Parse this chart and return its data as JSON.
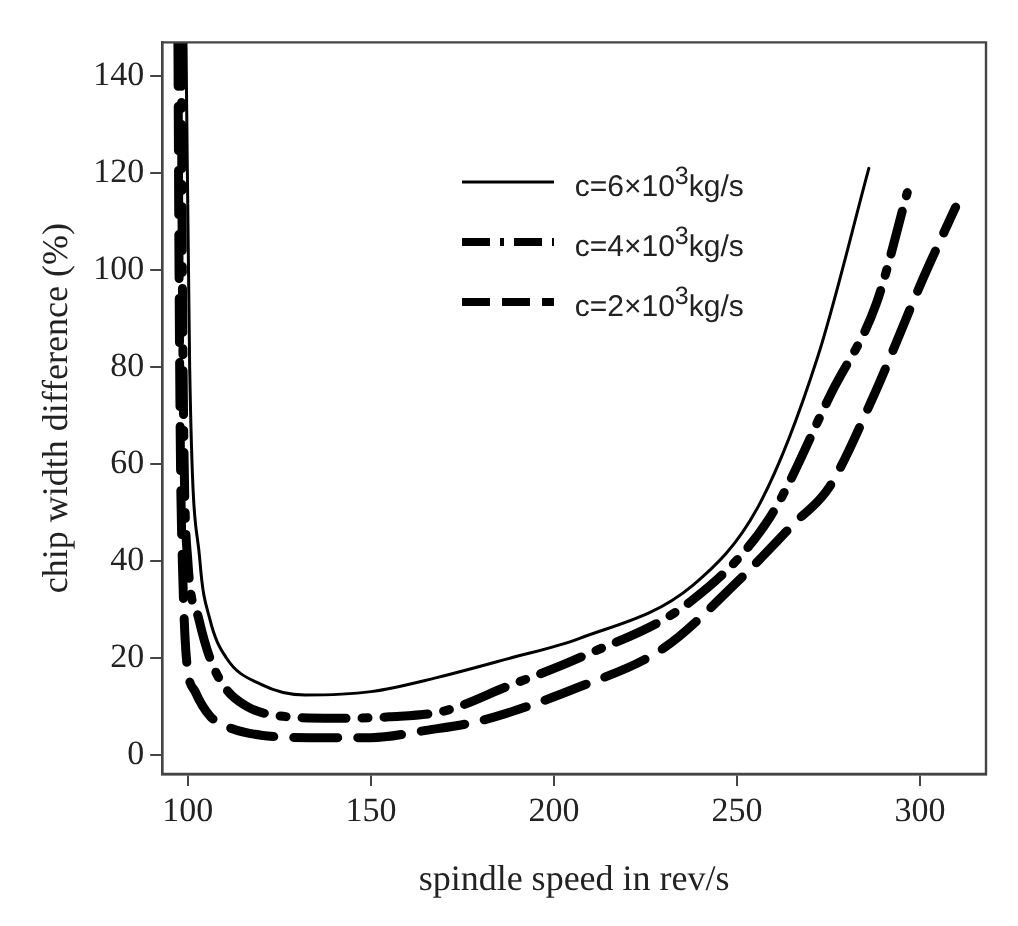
{
  "chart_data": {
    "type": "line",
    "xlabel": "spindle speed in rev/s",
    "ylabel": "chip width difference (%)",
    "xlim": [
      93,
      318
    ],
    "ylim": [
      -4,
      147
    ],
    "xticks": [
      100,
      150,
      200,
      250,
      300
    ],
    "yticks": [
      0,
      20,
      40,
      60,
      80,
      100,
      120,
      140
    ],
    "grid": false,
    "legend": "top right",
    "marker": "none",
    "series": [
      {
        "name": "c=6×10$^{3}$kg/s",
        "color": "#000000",
        "line_style": "solid",
        "x": [
          99.5,
          100.5,
          103.3,
          106,
          110.5,
          120,
          132,
          150,
          168,
          187,
          207,
          238,
          256,
          272,
          286
        ],
        "values": [
          147,
          80,
          40,
          28,
          20,
          14.5,
          12.3,
          13,
          15.9,
          19.7,
          24,
          35,
          51.5,
          82,
          121
        ]
      },
      {
        "name": "c=4×10$^{3}$kg/s",
        "color": "#000000",
        "line_style": "dashdot",
        "x": [
          98.2,
          98.5,
          99,
          100,
          103,
          106,
          110,
          116,
          125,
          140,
          155,
          170,
          187,
          207,
          238,
          259,
          276,
          288,
          296.5
        ],
        "values": [
          147,
          100,
          60,
          40,
          28,
          20,
          14,
          10,
          8,
          7.5,
          7.8,
          9,
          14,
          20,
          32,
          49,
          75,
          93,
          116
        ]
      },
      {
        "name": "c=2×10$^{3}$kg/s",
        "color": "#000000",
        "line_style": "dashed",
        "x": [
          97.3,
          97.6,
          98,
          98.5,
          99.6,
          102,
          106,
          110,
          120,
          135,
          150,
          165,
          180,
          207,
          230,
          250.5,
          266,
          275,
          286.7,
          301,
          309.7
        ],
        "values": [
          147,
          100,
          60,
          40,
          20,
          13,
          8,
          6,
          4,
          3.5,
          3.5,
          5,
          7,
          14,
          22,
          36,
          48,
          55,
          73,
          98.6,
          113
        ]
      }
    ]
  }
}
